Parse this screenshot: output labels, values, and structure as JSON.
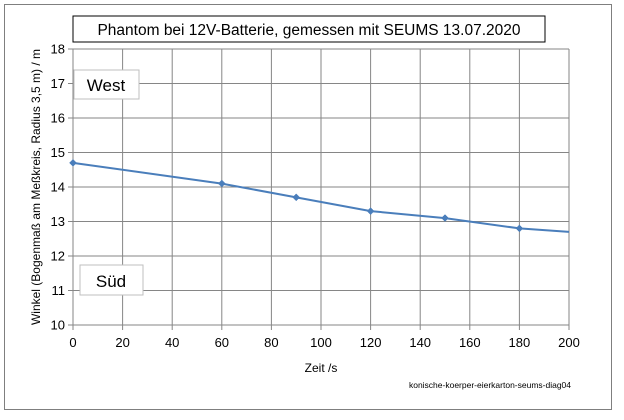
{
  "chart_data": {
    "type": "line",
    "title": "Phantom bei 12V-Batterie, gemessen mit SEUMS  13.07.2020",
    "xlabel": "Zeit /s",
    "ylabel": "Winkel (Bogenmaß am Meßkreis, Radius 3,5 m) / m",
    "xlim": [
      0,
      200
    ],
    "ylim": [
      10,
      18
    ],
    "xticks": [
      0,
      20,
      40,
      60,
      80,
      100,
      120,
      140,
      160,
      180,
      200
    ],
    "yticks": [
      10,
      11,
      12,
      13,
      14,
      15,
      16,
      17,
      18
    ],
    "grid": true,
    "series": [
      {
        "x": [
          0,
          60,
          90,
          120,
          150,
          180,
          200
        ],
        "y": [
          14.7,
          14.1,
          13.7,
          13.3,
          13.1,
          12.8,
          12.7
        ],
        "markers": [
          true,
          true,
          true,
          true,
          true,
          true,
          false
        ],
        "color": "#4a7ebb"
      }
    ],
    "annotations": {
      "west": "West",
      "sued": "Süd"
    },
    "footnote": "konische-koerper-eierkarton-seums-diag04"
  },
  "colors": {
    "line": "#4a7ebb",
    "grid": "#868686",
    "axis": "#868686"
  }
}
